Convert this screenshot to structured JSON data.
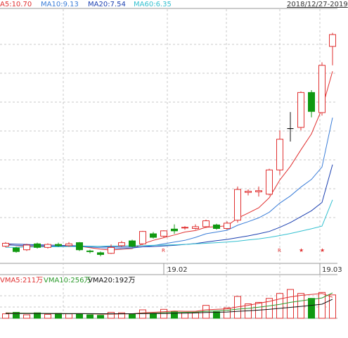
{
  "header": {
    "ma5": "A5:10.70",
    "ma10": "MA10:9.13",
    "ma20": "MA20:7.54",
    "ma60": "MA60:6.35",
    "date_range": "2018/12/27-2019"
  },
  "volume_header": {
    "vma5": "VMA5:211万",
    "vma10": "VMA10:256万",
    "vma20": "VMA20:192万"
  },
  "colors": {
    "up": "#e03030",
    "down": "#119911",
    "ma5": "#e03030",
    "ma10": "#3a7dd8",
    "ma20": "#1a3fb0",
    "ma60": "#33c0d0",
    "grid": "#c8c8c8",
    "vma5": "#e03030",
    "vma10": "#2a9a2a",
    "vma20": "#111111"
  },
  "chart_data": {
    "type": "candlestick",
    "x_ticks": [
      "19.02",
      "19.03"
    ],
    "markers": [
      {
        "index": 15,
        "text": "R"
      },
      {
        "index": 26,
        "text": "R"
      },
      {
        "index": 28,
        "text": "★"
      },
      {
        "index": 30,
        "text": "★"
      }
    ],
    "candles": [
      {
        "o": 4.78,
        "c": 4.88,
        "h": 4.92,
        "l": 4.74
      },
      {
        "o": 4.72,
        "c": 4.6,
        "h": 4.76,
        "l": 4.56
      },
      {
        "o": 4.66,
        "c": 4.82,
        "h": 4.86,
        "l": 4.62
      },
      {
        "o": 4.86,
        "c": 4.74,
        "h": 4.9,
        "l": 4.7
      },
      {
        "o": 4.74,
        "c": 4.84,
        "h": 4.88,
        "l": 4.7
      },
      {
        "o": 4.84,
        "c": 4.8,
        "h": 4.9,
        "l": 4.76
      },
      {
        "o": 4.8,
        "c": 4.86,
        "h": 4.92,
        "l": 4.76
      },
      {
        "o": 4.9,
        "c": 4.66,
        "h": 4.92,
        "l": 4.62
      },
      {
        "o": 4.62,
        "c": 4.6,
        "h": 4.66,
        "l": 4.54
      },
      {
        "o": 4.56,
        "c": 4.5,
        "h": 4.6,
        "l": 4.44
      },
      {
        "o": 4.54,
        "c": 4.74,
        "h": 4.84,
        "l": 4.52
      },
      {
        "o": 4.8,
        "c": 4.9,
        "h": 4.96,
        "l": 4.76
      },
      {
        "o": 4.96,
        "c": 4.78,
        "h": 5.0,
        "l": 4.74
      },
      {
        "o": 4.86,
        "c": 5.28,
        "h": 5.3,
        "l": 4.82
      },
      {
        "o": 5.2,
        "c": 5.08,
        "h": 5.26,
        "l": 5.04
      },
      {
        "o": 5.12,
        "c": 5.3,
        "h": 5.32,
        "l": 5.08
      },
      {
        "o": 5.36,
        "c": 5.3,
        "h": 5.52,
        "l": 5.2
      },
      {
        "o": 5.4,
        "c": 5.42,
        "h": 5.46,
        "l": 5.34
      },
      {
        "o": 5.38,
        "c": 5.44,
        "h": 5.52,
        "l": 5.34
      },
      {
        "o": 5.44,
        "c": 5.64,
        "h": 5.68,
        "l": 5.4
      },
      {
        "o": 5.5,
        "c": 5.38,
        "h": 5.54,
        "l": 5.34
      },
      {
        "o": 5.38,
        "c": 5.56,
        "h": 5.62,
        "l": 5.34
      },
      {
        "o": 5.66,
        "c": 6.7,
        "h": 6.8,
        "l": 5.58
      },
      {
        "o": 6.6,
        "c": 6.64,
        "h": 6.7,
        "l": 6.5
      },
      {
        "o": 6.62,
        "c": 6.66,
        "h": 6.8,
        "l": 6.46
      },
      {
        "o": 6.54,
        "c": 7.36,
        "h": 7.4,
        "l": 6.5
      },
      {
        "o": 7.36,
        "c": 8.4,
        "h": 8.7,
        "l": 7.2
      },
      {
        "o": 8.74,
        "c": 8.76,
        "h": 9.32,
        "l": 8.32
      },
      {
        "o": 8.8,
        "c": 9.98,
        "h": 10.02,
        "l": 8.7
      },
      {
        "o": 9.98,
        "c": 9.34,
        "h": 10.06,
        "l": 9.14
      },
      {
        "o": 9.3,
        "c": 10.9,
        "h": 11.0,
        "l": 9.2
      },
      {
        "o": 11.54,
        "c": 11.94,
        "h": 12.0,
        "l": 10.9
      }
    ],
    "ma_lines": {
      "MA5": [
        4.85,
        4.8,
        4.78,
        4.79,
        4.77,
        4.77,
        4.81,
        4.78,
        4.73,
        4.68,
        4.65,
        4.68,
        4.7,
        4.86,
        4.98,
        5.07,
        5.16,
        5.26,
        5.31,
        5.42,
        5.44,
        5.47,
        5.73,
        5.9,
        6.08,
        6.42,
        7.02,
        7.48,
        8.04,
        8.58,
        9.43,
        10.7
      ],
      "MA10": [
        4.82,
        4.81,
        4.8,
        4.8,
        4.79,
        4.78,
        4.78,
        4.78,
        4.75,
        4.73,
        4.71,
        4.7,
        4.72,
        4.76,
        4.8,
        4.86,
        4.92,
        4.98,
        5.08,
        5.2,
        5.26,
        5.32,
        5.49,
        5.61,
        5.74,
        5.93,
        6.24,
        6.48,
        6.78,
        7.04,
        7.46,
        9.13
      ],
      "MA20": [
        4.86,
        4.85,
        4.84,
        4.83,
        4.82,
        4.81,
        4.8,
        4.79,
        4.78,
        4.77,
        4.76,
        4.75,
        4.75,
        4.76,
        4.77,
        4.79,
        4.81,
        4.84,
        4.87,
        4.92,
        4.97,
        5.01,
        5.07,
        5.13,
        5.2,
        5.28,
        5.42,
        5.58,
        5.78,
        5.98,
        6.26,
        7.54
      ],
      "MA60": [
        4.74,
        4.74,
        4.75,
        4.75,
        4.76,
        4.76,
        4.77,
        4.77,
        4.78,
        4.78,
        4.79,
        4.79,
        4.8,
        4.8,
        4.81,
        4.82,
        4.83,
        4.84,
        4.86,
        4.88,
        4.9,
        4.92,
        4.95,
        4.99,
        5.03,
        5.08,
        5.14,
        5.21,
        5.29,
        5.37,
        5.46,
        6.35
      ]
    },
    "volumes": [
      45,
      60,
      35,
      55,
      40,
      50,
      45,
      40,
      35,
      30,
      60,
      55,
      45,
      85,
      50,
      90,
      65,
      60,
      60,
      130,
      65,
      105,
      220,
      145,
      160,
      200,
      250,
      290,
      250,
      200,
      260,
      235
    ],
    "vma_lines": {
      "VMA5": [
        55,
        52,
        50,
        50,
        48,
        47,
        46,
        47,
        45,
        42,
        42,
        44,
        45,
        55,
        60,
        66,
        72,
        70,
        70,
        85,
        90,
        95,
        115,
        130,
        150,
        170,
        195,
        215,
        230,
        240,
        250,
        211
      ],
      "VMA10": [
        52,
        51,
        50,
        50,
        49,
        48,
        47,
        47,
        46,
        45,
        45,
        45,
        46,
        48,
        52,
        55,
        58,
        60,
        62,
        70,
        75,
        80,
        92,
        100,
        112,
        125,
        140,
        160,
        175,
        190,
        205,
        256
      ],
      "VMA20": [
        48,
        48,
        48,
        48,
        48,
        47,
        47,
        47,
        47,
        46,
        46,
        46,
        46,
        47,
        48,
        49,
        50,
        52,
        54,
        58,
        60,
        63,
        70,
        75,
        82,
        90,
        100,
        110,
        120,
        130,
        142,
        192
      ]
    }
  }
}
